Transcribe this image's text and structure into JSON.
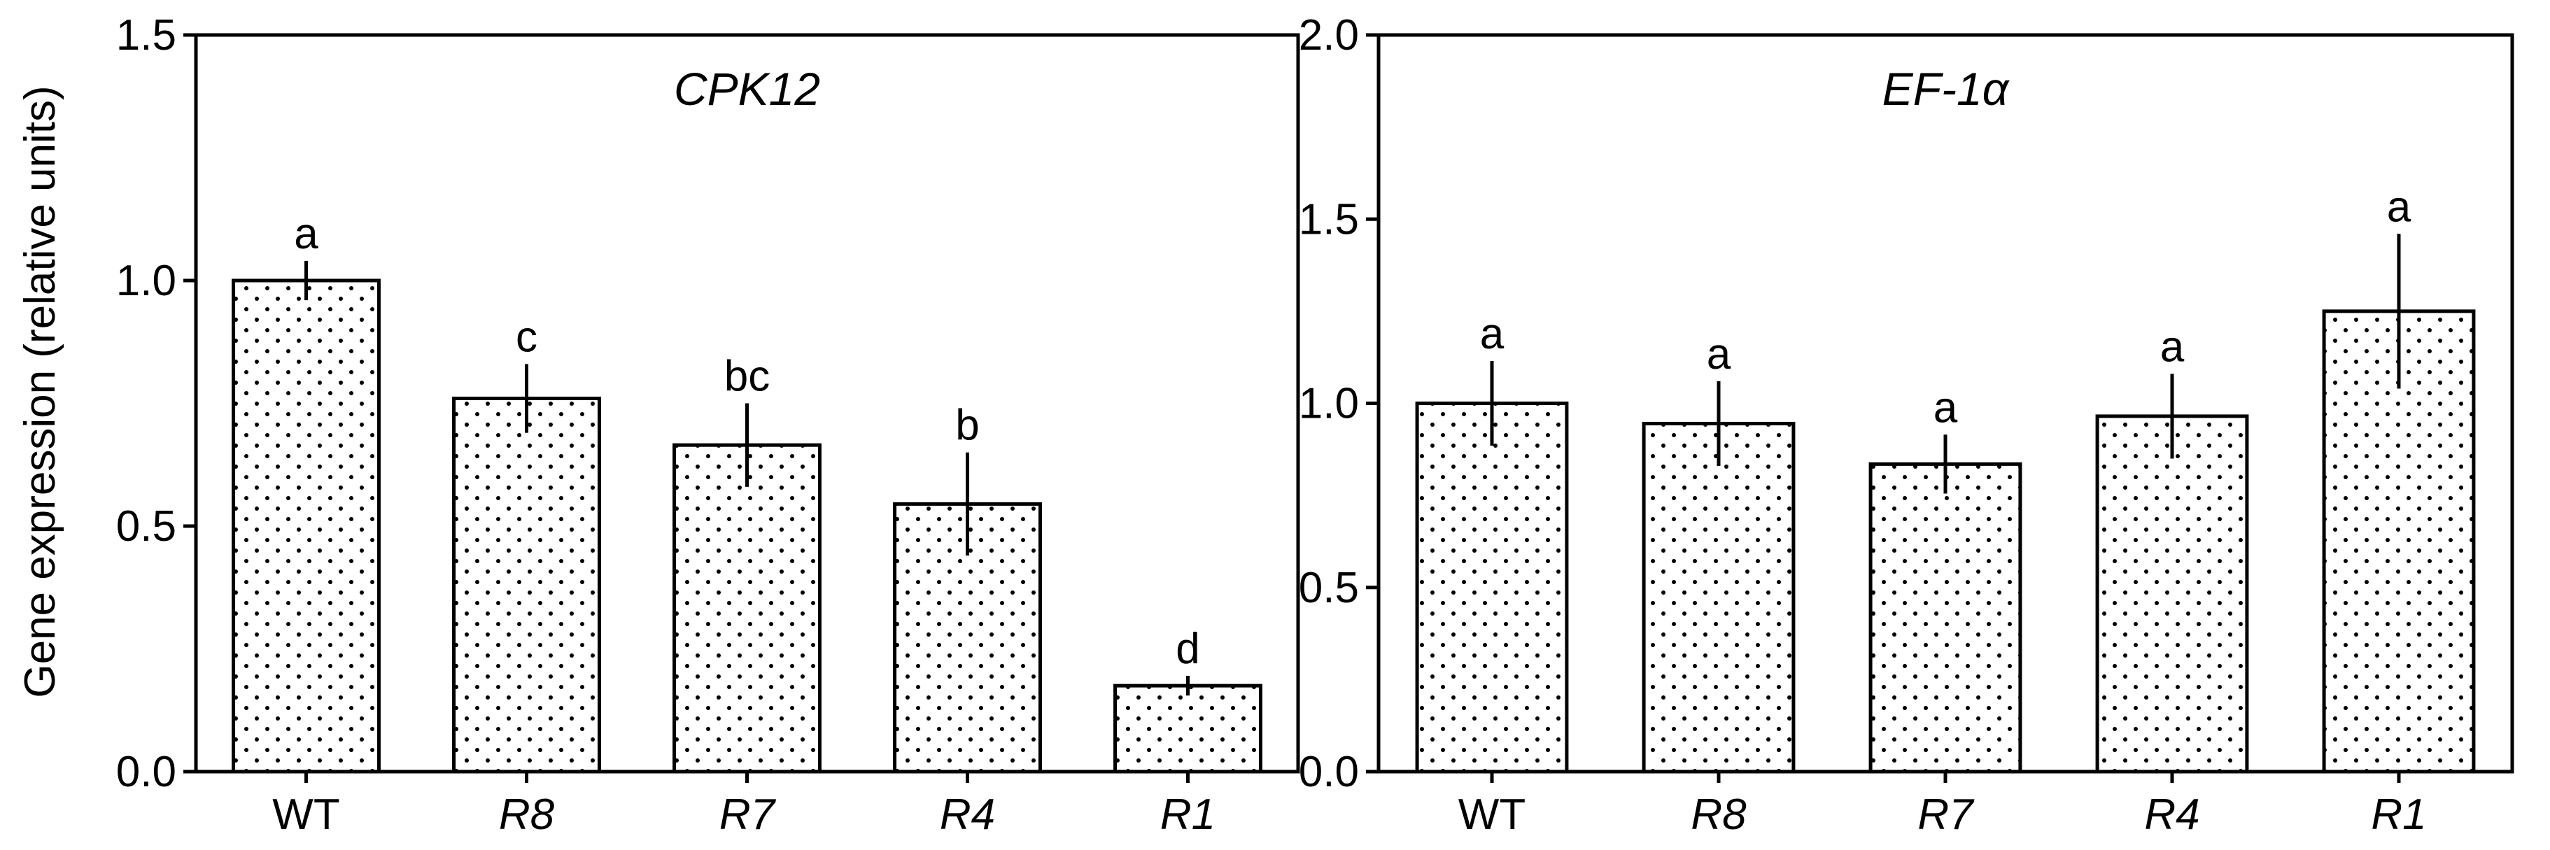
{
  "colors": {
    "axis": "#000000",
    "bar_fill": "#ffffff",
    "dot": "#000000"
  },
  "ylabel": "Gene expression (relative units)",
  "chart_data": [
    {
      "type": "bar",
      "title": "CPK12",
      "categories": [
        "WT",
        "R8",
        "R7",
        "R4",
        "R1"
      ],
      "italic_categories": [
        false,
        true,
        true,
        true,
        true
      ],
      "values": [
        1.0,
        0.76,
        0.665,
        0.545,
        0.175
      ],
      "errors": [
        0.04,
        0.07,
        0.085,
        0.105,
        0.02
      ],
      "significance": [
        "a",
        "c",
        "bc",
        "b",
        "d"
      ],
      "ylim": [
        0,
        1.5
      ],
      "yticks": [
        "0.0",
        "0.5",
        "1.0",
        "1.5"
      ],
      "ytick_values": [
        0,
        0.5,
        1.0,
        1.5
      ],
      "grid": false,
      "pattern": "dotted"
    },
    {
      "type": "bar",
      "title": "EF-1α",
      "categories": [
        "WT",
        "R8",
        "R7",
        "R4",
        "R1"
      ],
      "italic_categories": [
        false,
        true,
        true,
        true,
        true
      ],
      "values": [
        1.0,
        0.945,
        0.835,
        0.965,
        1.25
      ],
      "errors": [
        0.115,
        0.115,
        0.08,
        0.115,
        0.21
      ],
      "significance": [
        "a",
        "a",
        "a",
        "a",
        "a"
      ],
      "ylim": [
        0,
        2.0
      ],
      "yticks": [
        "0.0",
        "0.5",
        "1.0",
        "1.5",
        "2.0"
      ],
      "ytick_values": [
        0,
        0.5,
        1.0,
        1.5,
        2.0
      ],
      "grid": false,
      "pattern": "dotted"
    }
  ]
}
